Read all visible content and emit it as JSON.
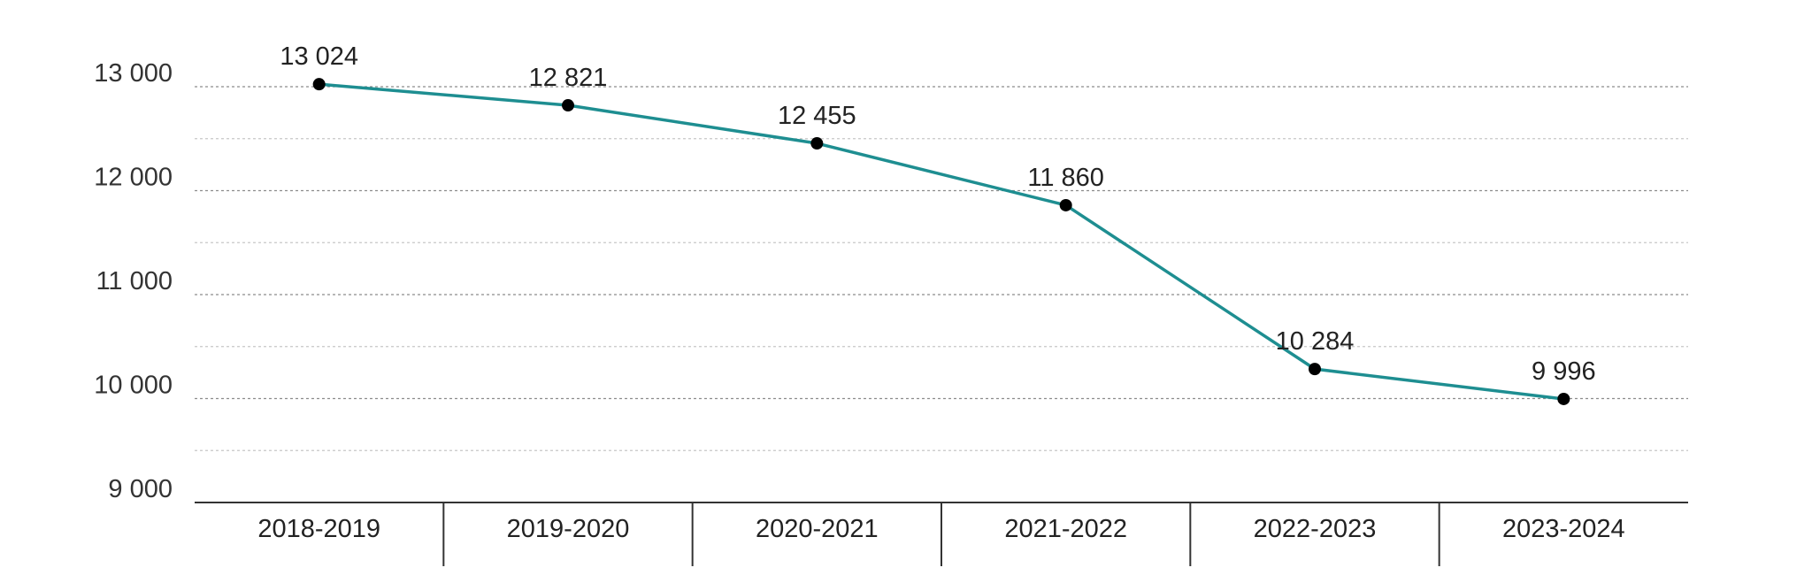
{
  "colors": {
    "series": "#1e8e91",
    "point": "#000000",
    "axis": "#333333"
  },
  "chart_data": {
    "type": "line",
    "title": "",
    "xlabel": "",
    "ylabel": "",
    "categories": [
      "2018-2019",
      "2019-2020",
      "2020-2021",
      "2021-2022",
      "2022-2023",
      "2023-2024"
    ],
    "series": [
      {
        "values": [
          13024,
          12821,
          12455,
          11860,
          10284,
          9996
        ],
        "labels": [
          "13 024",
          "12 821",
          "12 455",
          "11 860",
          "10 284",
          "9 996"
        ]
      }
    ],
    "ylim": [
      9000,
      13000
    ],
    "yticks": [
      9000,
      10000,
      11000,
      12000,
      13000
    ],
    "ytick_labels": [
      "9 000",
      "10 000",
      "11 000",
      "12 000",
      "13 000"
    ],
    "minor_gridlines": [
      9500,
      10500,
      11500,
      12500
    ],
    "grid": true,
    "legend": "none"
  }
}
